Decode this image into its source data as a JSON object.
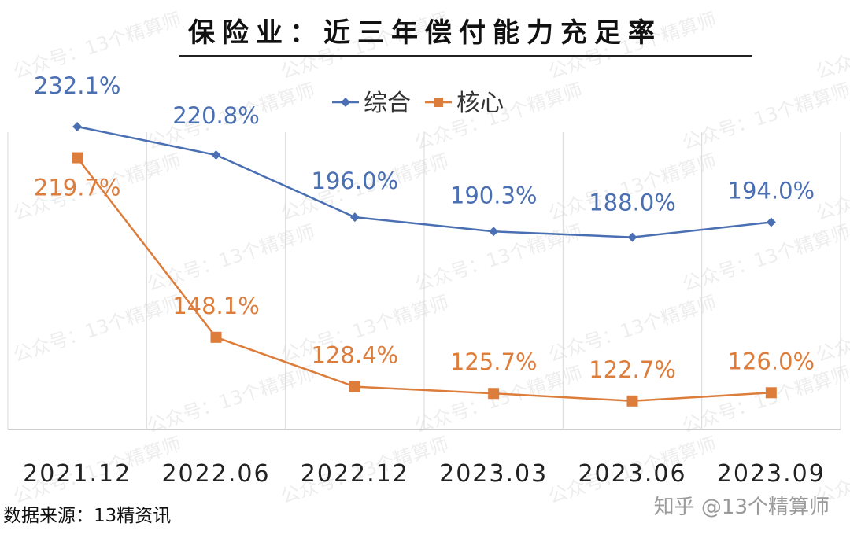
{
  "title": "保险业：近三年偿付能力充足率",
  "source": "数据来源：13精资讯",
  "watermark": {
    "credit": "知乎 @13个精算师"
  },
  "colors": {
    "composite": "#4a6fb2",
    "core": "#dd7d3c",
    "grid": "#d9d9d9",
    "axis": "#bfbfbf"
  },
  "chart_data": {
    "type": "line",
    "title": "保险业：近三年偿付能力充足率",
    "categories": [
      "2021.12",
      "2022.06",
      "2022.12",
      "2023.03",
      "2023.06",
      "2023.09"
    ],
    "series": [
      {
        "name": "综合",
        "values": [
          232.1,
          220.8,
          196.0,
          190.3,
          188.0,
          194.0
        ],
        "labels": [
          "232.1%",
          "220.8%",
          "196.0%",
          "190.3%",
          "188.0%",
          "194.0%"
        ],
        "marker": "diamond"
      },
      {
        "name": "核心",
        "values": [
          219.7,
          148.1,
          128.4,
          125.7,
          122.7,
          126.0
        ],
        "labels": [
          "219.7%",
          "148.1%",
          "128.4%",
          "125.7%",
          "122.7%",
          "126.0%"
        ],
        "marker": "square"
      }
    ],
    "legend": "top-center",
    "grid": "vertical",
    "ylim": [
      85,
      255
    ]
  }
}
